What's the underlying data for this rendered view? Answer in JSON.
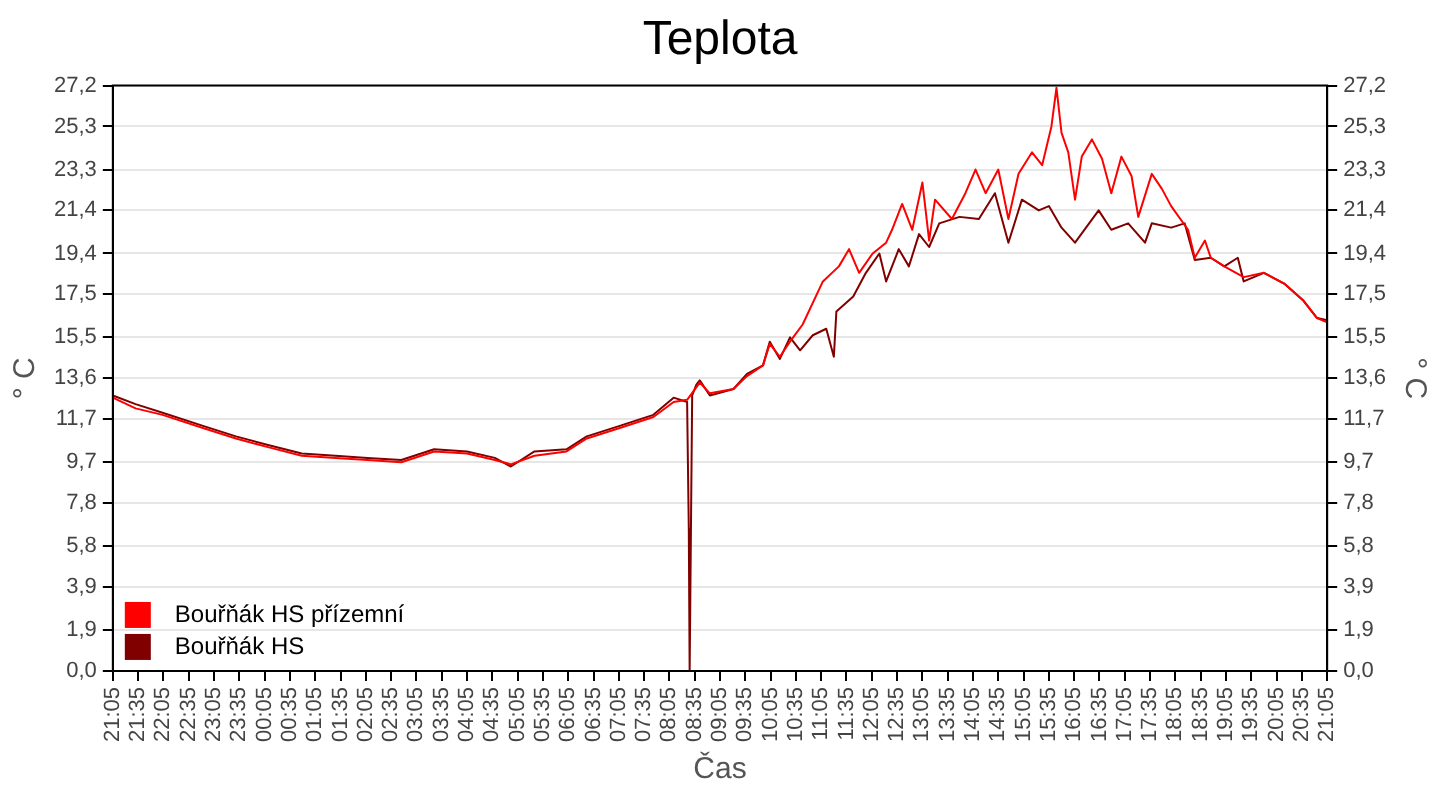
{
  "chart_data": {
    "type": "line",
    "title": "Teplota",
    "xlabel": "Čas",
    "ylabel": "° C",
    "y2label": "° C",
    "xlim": [
      "--01-01T21:05",
      "--01-02T21:05"
    ],
    "xticks": [
      {
        "value": "--01-01T21:05",
        "label": "21:05"
      },
      {
        "value": "--01-01T21:35",
        "label": "21:35"
      },
      {
        "value": "--01-01T22:05",
        "label": "22:05"
      },
      {
        "value": "--01-01T22:35",
        "label": "22:35"
      },
      {
        "value": "--01-01T23:05",
        "label": "23:05"
      },
      {
        "value": "--01-01T23:35",
        "label": "23:35"
      },
      {
        "value": "--01-02T00:05",
        "label": "00:05"
      },
      {
        "value": "--01-02T00:35",
        "label": "00:35"
      },
      {
        "value": "--01-02T01:05",
        "label": "01:05"
      },
      {
        "value": "--01-02T01:35",
        "label": "01:35"
      },
      {
        "value": "--01-02T02:05",
        "label": "02:05"
      },
      {
        "value": "--01-02T02:35",
        "label": "02:35"
      },
      {
        "value": "--01-02T03:05",
        "label": "03:05"
      },
      {
        "value": "--01-02T03:35",
        "label": "03:35"
      },
      {
        "value": "--01-02T04:05",
        "label": "04:05"
      },
      {
        "value": "--01-02T04:35",
        "label": "04:35"
      },
      {
        "value": "--01-02T05:05",
        "label": "05:05"
      },
      {
        "value": "--01-02T05:35",
        "label": "05:35"
      },
      {
        "value": "--01-02T06:05",
        "label": "06:05"
      },
      {
        "value": "--01-02T06:35",
        "label": "06:35"
      },
      {
        "value": "--01-02T07:05",
        "label": "07:05"
      },
      {
        "value": "--01-02T07:35",
        "label": "07:35"
      },
      {
        "value": "--01-02T08:05",
        "label": "08:05"
      },
      {
        "value": "--01-02T08:35",
        "label": "08:35"
      },
      {
        "value": "--01-02T09:05",
        "label": "09:05"
      },
      {
        "value": "--01-02T09:35",
        "label": "09:35"
      },
      {
        "value": "--01-02T10:05",
        "label": "10:05"
      },
      {
        "value": "--01-02T10:35",
        "label": "10:35"
      },
      {
        "value": "--01-02T11:05",
        "label": "11:05"
      },
      {
        "value": "--01-02T11:35",
        "label": "11:35"
      },
      {
        "value": "--01-02T12:05",
        "label": "12:05"
      },
      {
        "value": "--01-02T12:35",
        "label": "12:35"
      },
      {
        "value": "--01-02T13:05",
        "label": "13:05"
      },
      {
        "value": "--01-02T13:35",
        "label": "13:35"
      },
      {
        "value": "--01-02T14:05",
        "label": "14:05"
      },
      {
        "value": "--01-02T14:35",
        "label": "14:35"
      },
      {
        "value": "--01-02T15:05",
        "label": "15:05"
      },
      {
        "value": "--01-02T15:35",
        "label": "15:35"
      },
      {
        "value": "--01-02T16:05",
        "label": "16:05"
      },
      {
        "value": "--01-02T16:35",
        "label": "16:35"
      },
      {
        "value": "--01-02T17:05",
        "label": "17:05"
      },
      {
        "value": "--01-02T17:35",
        "label": "17:35"
      },
      {
        "value": "--01-02T18:05",
        "label": "18:05"
      },
      {
        "value": "--01-02T18:35",
        "label": "18:35"
      },
      {
        "value": "--01-02T19:05",
        "label": "19:05"
      },
      {
        "value": "--01-02T19:35",
        "label": "19:35"
      },
      {
        "value": "--01-02T20:05",
        "label": "20:05"
      },
      {
        "value": "--01-02T20:35",
        "label": "20:35"
      },
      {
        "value": "--01-02T21:05",
        "label": "21:05"
      }
    ],
    "ylim": [
      0,
      27.2
    ],
    "yticks": [
      {
        "value": 0,
        "label": "0,0"
      },
      {
        "value": 1.9,
        "label": "1,9"
      },
      {
        "value": 3.9,
        "label": "3,9"
      },
      {
        "value": 5.8,
        "label": "5,8"
      },
      {
        "value": 7.8,
        "label": "7,8"
      },
      {
        "value": 9.7,
        "label": "9,7"
      },
      {
        "value": 11.7,
        "label": "11,7"
      },
      {
        "value": 13.6,
        "label": "13,6"
      },
      {
        "value": 15.5,
        "label": "15,5"
      },
      {
        "value": 17.5,
        "label": "17,5"
      },
      {
        "value": 19.4,
        "label": "19,4"
      },
      {
        "value": 21.4,
        "label": "21,4"
      },
      {
        "value": 23.3,
        "label": "23,3"
      },
      {
        "value": 25.3,
        "label": "25,3"
      },
      {
        "value": 27.2,
        "label": "27,2"
      }
    ],
    "y2lim": [
      0,
      27.2
    ],
    "y2ticks": [
      {
        "value": 0,
        "label": "0,0"
      },
      {
        "value": 1.9,
        "label": "1,9"
      },
      {
        "value": 3.9,
        "label": "3,9"
      },
      {
        "value": 5.8,
        "label": "5,8"
      },
      {
        "value": 7.8,
        "label": "7,8"
      },
      {
        "value": 9.7,
        "label": "9,7"
      },
      {
        "value": 11.7,
        "label": "11,7"
      },
      {
        "value": 13.6,
        "label": "13,6"
      },
      {
        "value": 15.5,
        "label": "15,5"
      },
      {
        "value": 17.5,
        "label": "17,5"
      },
      {
        "value": 19.4,
        "label": "19,4"
      },
      {
        "value": 21.4,
        "label": "21,4"
      },
      {
        "value": 23.3,
        "label": "23,3"
      },
      {
        "value": 25.3,
        "label": "25,3"
      },
      {
        "value": 27.2,
        "label": "27,2"
      }
    ],
    "grid": "y",
    "legend": "bottom left",
    "marker": "none",
    "line_style": "solid",
    "series": [
      {
        "name": "Bouřňák HS přízemní",
        "color": "#ff0000",
        "x": [
          "--01-01T21:05",
          "--01-01T21:32",
          "--01-01T22:04",
          "--01-01T22:51",
          "--01-01T23:31",
          "--01-02T00:09",
          "--01-02T00:49",
          "--01-02T01:29",
          "--01-02T02:07",
          "--01-02T02:47",
          "--01-02T03:26",
          "--01-02T04:05",
          "--01-02T04:38",
          "--01-02T04:57",
          "--01-02T05:25",
          "--01-02T06:03",
          "--01-02T06:27",
          "--01-02T07:07",
          "--01-02T07:46",
          "--01-02T08:10",
          "--01-02T08:26",
          "--01-02T08:41",
          "--01-02T08:53",
          "--01-02T09:21",
          "--01-02T09:37",
          "--01-02T09:56",
          "--01-02T10:04",
          "--01-02T10:16",
          "--01-02T10:28",
          "--01-02T10:43",
          "--01-02T11:07",
          "--01-02T11:26",
          "--01-02T11:38",
          "--01-02T11:50",
          "--01-02T12:06",
          "--01-02T12:22",
          "--01-02T12:29",
          "--01-02T12:41",
          "--01-02T12:53",
          "--01-02T13:05",
          "--01-02T13:13",
          "--01-02T13:20",
          "--01-02T13:40",
          "--01-02T13:56",
          "--01-02T14:08",
          "--01-02T14:20",
          "--01-02T14:35",
          "--01-02T14:47",
          "--01-02T14:59",
          "--01-02T15:15",
          "--01-02T15:27",
          "--01-02T15:38",
          "--01-02T15:44",
          "--01-02T15:50",
          "--01-02T15:58",
          "--01-02T16:06",
          "--01-02T16:14",
          "--01-02T16:26",
          "--01-02T16:38",
          "--01-02T16:49",
          "--01-02T17:01",
          "--01-02T17:13",
          "--01-02T17:21",
          "--01-02T17:37",
          "--01-02T17:49",
          "--01-02T18:00",
          "--01-02T18:20",
          "--01-02T18:28",
          "--01-02T18:40",
          "--01-02T18:47",
          "--01-02T19:03",
          "--01-02T19:26",
          "--01-02T19:50",
          "--01-02T20:14",
          "--01-02T20:37",
          "--01-02T20:53",
          "--01-02T21:05"
        ],
        "values": [
          12.7,
          12.2,
          11.9,
          11.3,
          10.8,
          10.4,
          10.0,
          9.9,
          9.8,
          9.7,
          10.2,
          10.1,
          9.8,
          9.6,
          10.0,
          10.2,
          10.8,
          11.3,
          11.8,
          12.5,
          12.6,
          13.4,
          12.9,
          13.1,
          13.7,
          14.2,
          15.2,
          14.6,
          15.3,
          16.1,
          18.1,
          18.8,
          19.6,
          18.5,
          19.4,
          19.9,
          20.5,
          21.7,
          20.5,
          22.7,
          20.0,
          21.9,
          21.0,
          22.2,
          23.3,
          22.2,
          23.3,
          21.0,
          23.1,
          24.1,
          23.5,
          25.3,
          27.1,
          25.0,
          24.1,
          21.9,
          23.9,
          24.7,
          23.8,
          22.2,
          23.9,
          23.0,
          21.1,
          23.1,
          22.4,
          21.6,
          20.5,
          19.2,
          20.0,
          19.2,
          18.8,
          18.3,
          18.5,
          18.0,
          17.2,
          16.4,
          16.2
        ]
      },
      {
        "name": "Bouřňák HS",
        "color": "#800000",
        "x": [
          "--01-01T21:05",
          "--01-01T21:32",
          "--01-01T22:04",
          "--01-01T22:51",
          "--01-01T23:31",
          "--01-02T00:09",
          "--01-02T00:49",
          "--01-02T01:29",
          "--01-02T02:07",
          "--01-02T02:47",
          "--01-02T03:26",
          "--01-02T04:05",
          "--01-02T04:38",
          "--01-02T04:57",
          "--01-02T05:25",
          "--01-02T06:03",
          "--01-02T06:27",
          "--01-02T07:07",
          "--01-02T07:46",
          "--01-02T08:10",
          "--01-02T08:26",
          "--01-02T08:28",
          "--01-02T08:29",
          "--01-02T08:32",
          "--01-02T08:37",
          "--01-02T08:41",
          "--01-02T08:53",
          "--01-02T09:21",
          "--01-02T09:37",
          "--01-02T09:56",
          "--01-02T10:04",
          "--01-02T10:16",
          "--01-02T10:28",
          "--01-02T10:40",
          "--01-02T10:55",
          "--01-02T11:11",
          "--01-02T11:20",
          "--01-02T11:23",
          "--01-02T11:43",
          "--01-02T11:58",
          "--01-02T12:14",
          "--01-02T12:22",
          "--01-02T12:37",
          "--01-02T12:49",
          "--01-02T13:01",
          "--01-02T13:13",
          "--01-02T13:25",
          "--01-02T13:49",
          "--01-02T14:12",
          "--01-02T14:31",
          "--01-02T14:47",
          "--01-02T15:03",
          "--01-02T15:23",
          "--01-02T15:35",
          "--01-02T15:50",
          "--01-02T16:06",
          "--01-02T16:34",
          "--01-02T16:49",
          "--01-02T17:09",
          "--01-02T17:29",
          "--01-02T17:37",
          "--01-02T18:00",
          "--01-02T18:16",
          "--01-02T18:28",
          "--01-02T18:47",
          "--01-02T19:03",
          "--01-02T19:19",
          "--01-02T19:26",
          "--01-02T19:50",
          "--01-02T20:14",
          "--01-02T20:37",
          "--01-02T20:53",
          "--01-02T21:05"
        ],
        "values": [
          12.8,
          12.4,
          12.0,
          11.4,
          10.9,
          10.5,
          10.1,
          10.0,
          9.9,
          9.8,
          10.3,
          10.2,
          9.9,
          9.5,
          10.2,
          10.3,
          10.9,
          11.4,
          11.9,
          12.7,
          12.5,
          6.6,
          0,
          12.8,
          13.3,
          13.5,
          12.8,
          13.1,
          13.8,
          14.2,
          15.3,
          14.5,
          15.5,
          14.9,
          15.6,
          15.9,
          14.6,
          16.7,
          17.4,
          18.5,
          19.4,
          18.1,
          19.6,
          18.8,
          20.3,
          19.7,
          20.8,
          21.1,
          21.0,
          22.2,
          19.9,
          21.9,
          21.4,
          21.6,
          20.6,
          19.9,
          21.4,
          20.5,
          20.8,
          19.9,
          20.8,
          20.6,
          20.8,
          19.1,
          19.2,
          18.8,
          19.2,
          18.1,
          18.5,
          18.0,
          17.2,
          16.4,
          16.3
        ]
      }
    ]
  }
}
